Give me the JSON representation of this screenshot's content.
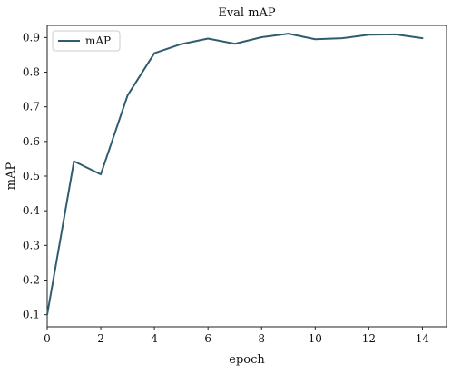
{
  "chart_data": {
    "type": "line",
    "title": "Eval mAP",
    "xlabel": "epoch",
    "ylabel": "mAP",
    "xlim": [
      0,
      14.9
    ],
    "ylim": [
      0.065,
      0.935
    ],
    "xticks": [
      0,
      2,
      4,
      6,
      8,
      10,
      12,
      14
    ],
    "yticks": [
      0.1,
      0.2,
      0.3,
      0.4,
      0.5,
      0.6,
      0.7,
      0.8,
      0.9
    ],
    "grid": false,
    "legend": {
      "position": "top-left",
      "entries": [
        "mAP"
      ]
    },
    "x": [
      0,
      1,
      2,
      3,
      4,
      5,
      6,
      7,
      8,
      9,
      10,
      11,
      12,
      13,
      14
    ],
    "series": [
      {
        "name": "mAP",
        "color": "#2f5d6e",
        "values": [
          0.1,
          0.543,
          0.505,
          0.733,
          0.855,
          0.881,
          0.897,
          0.882,
          0.901,
          0.911,
          0.895,
          0.898,
          0.908,
          0.909,
          0.898
        ]
      }
    ]
  }
}
